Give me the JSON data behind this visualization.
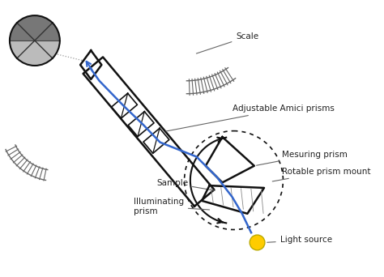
{
  "background_color": "#ffffff",
  "fig_width": 4.74,
  "fig_height": 3.42,
  "dpi": 100,
  "labels": {
    "scale": "Scale",
    "amici": "Adjustable Amici prisms",
    "measuring_prism": "Mesuring prism",
    "rotable": "Rotable prism mount",
    "sample": "Sample",
    "illuminating": "Illuminating\nprism",
    "light_source": "Light source"
  },
  "tube_color": "#111111",
  "blue_line_color": "#3366cc",
  "prism_color": "#222222",
  "light_source_color": "#ffcc00",
  "scale_color": "#666666",
  "label_color": "#222222",
  "label_fontsize": 7.5
}
